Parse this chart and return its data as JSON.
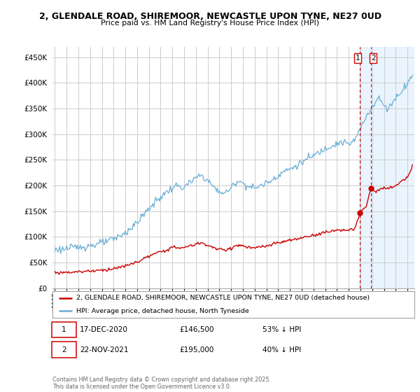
{
  "title_line1": "2, GLENDALE ROAD, SHIREMOOR, NEWCASTLE UPON TYNE, NE27 0UD",
  "title_line2": "Price paid vs. HM Land Registry's House Price Index (HPI)",
  "ylim": [
    0,
    470000
  ],
  "yticks": [
    0,
    50000,
    100000,
    150000,
    200000,
    250000,
    300000,
    350000,
    400000,
    450000
  ],
  "ytick_labels": [
    "£0",
    "£50K",
    "£100K",
    "£150K",
    "£200K",
    "£250K",
    "£300K",
    "£350K",
    "£400K",
    "£450K"
  ],
  "hpi_color": "#6aaed6",
  "price_color": "#cc0000",
  "sale1_date": 2020.96,
  "sale1_price": 146500,
  "sale2_date": 2021.9,
  "sale2_price": 195000,
  "legend_label_red": "2, GLENDALE ROAD, SHIREMOOR, NEWCASTLE UPON TYNE, NE27 0UD (detached house)",
  "legend_label_blue": "HPI: Average price, detached house, North Tyneside",
  "footnote": "Contains HM Land Registry data © Crown copyright and database right 2025.\nThis data is licensed under the Open Government Licence v3.0.",
  "bg_color": "#ffffff",
  "grid_color": "#cccccc",
  "shade_color": "#ddeeff",
  "vline_color": "#cc0000",
  "shade_start": 2020.96,
  "shade_end": 2025.6,
  "xmin": 1994.8,
  "xmax": 2025.6
}
